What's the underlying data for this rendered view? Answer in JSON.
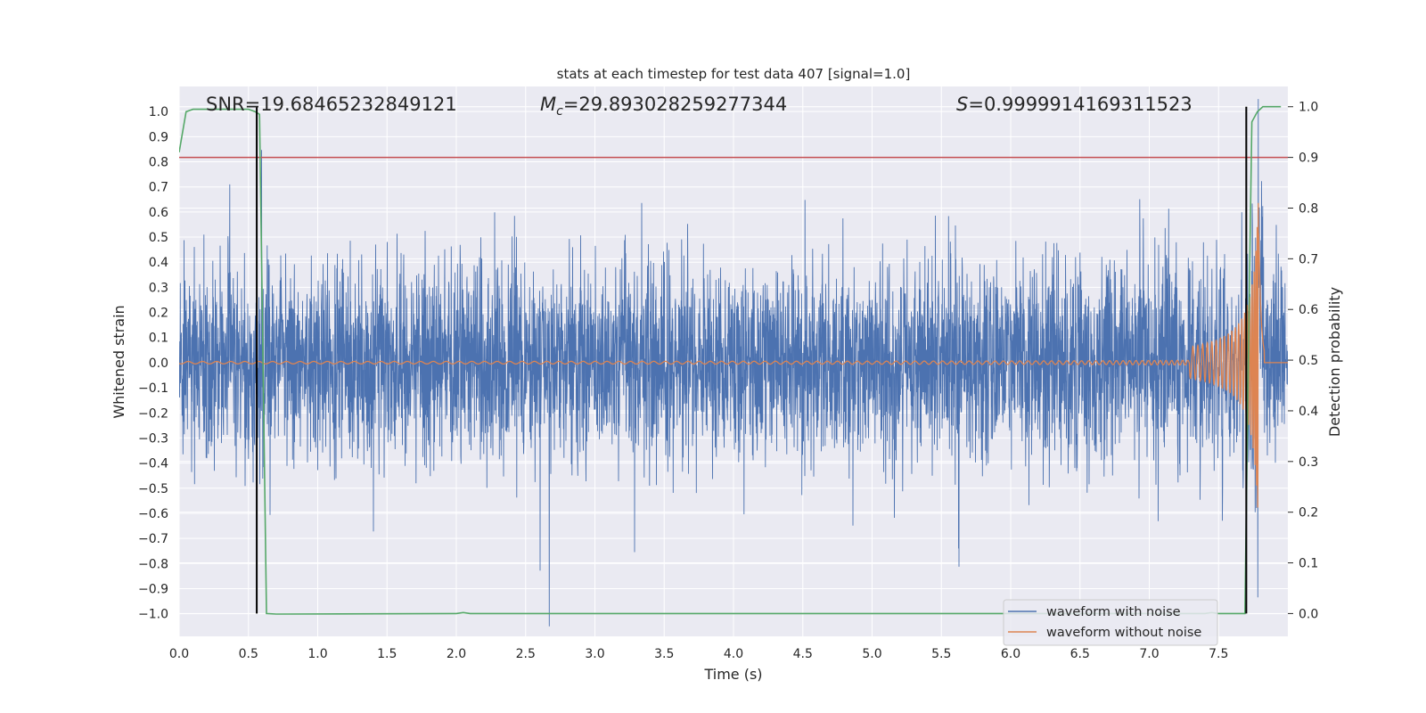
{
  "chart_data": {
    "type": "line",
    "title": "stats at each timestep for test data 407 [signal=1.0]",
    "xlabel": "Time (s)",
    "ylabel": "Whitened strain",
    "ylabel_right": "Detection probability",
    "xlim": [
      0.0,
      8.0
    ],
    "ylim": [
      -1.09,
      1.1
    ],
    "ylim_right": [
      -0.045,
      1.04
    ],
    "x_ticks": [
      "0.0",
      "0.5",
      "1.0",
      "1.5",
      "2.0",
      "2.5",
      "3.0",
      "3.5",
      "4.0",
      "4.5",
      "5.0",
      "5.5",
      "6.0",
      "6.5",
      "7.0",
      "7.5"
    ],
    "y_ticks": [
      "1.0",
      "0.9",
      "0.8",
      "0.7",
      "0.6",
      "0.5",
      "0.4",
      "0.3",
      "0.2",
      "0.1",
      "0.0",
      "−0.1",
      "−0.2",
      "−0.3",
      "−0.4",
      "−0.5",
      "−0.6",
      "−0.7",
      "−0.8",
      "−0.9",
      "−1.0"
    ],
    "y_tick_values": [
      1.0,
      0.9,
      0.8,
      0.7,
      0.6,
      0.5,
      0.4,
      0.3,
      0.2,
      0.1,
      0.0,
      -0.1,
      -0.2,
      -0.3,
      -0.4,
      -0.5,
      -0.6,
      -0.7,
      -0.8,
      -0.9,
      -1.0
    ],
    "y_right_ticks": [
      "1.0",
      "0.9",
      "0.8",
      "0.7",
      "0.6",
      "0.5",
      "0.4",
      "0.3",
      "0.2",
      "0.1",
      "0.0"
    ],
    "y_right_tick_values": [
      1.0,
      0.9,
      0.8,
      0.7,
      0.6,
      0.5,
      0.4,
      0.3,
      0.2,
      0.1,
      0.0
    ],
    "annotations": {
      "snr": "SNR=19.68465232849121",
      "mc_symbol": "M",
      "mc_sub": "c",
      "mc_value": "=29.893028259277344",
      "s_symbol": "S",
      "s_value": "=0.9999914169311523"
    },
    "threshold": {
      "value": 0.9,
      "axis": "right",
      "color": "#c44e52"
    },
    "vlines": [
      0.56,
      7.7
    ],
    "series": [
      {
        "name": "waveform with noise",
        "color": "#4c72b0",
        "noise_std": 0.19
      },
      {
        "name": "waveform without noise",
        "color": "#dd8452"
      },
      {
        "name": "Detection probability",
        "color": "#55a868",
        "axis": "right",
        "points": [
          [
            0.0,
            0.91
          ],
          [
            0.05,
            0.99
          ],
          [
            0.1,
            0.995
          ],
          [
            0.5,
            0.995
          ],
          [
            0.55,
            0.99
          ],
          [
            0.58,
            0.985
          ],
          [
            0.6,
            0.6
          ],
          [
            0.63,
            0.0
          ],
          [
            0.7,
            -0.001
          ],
          [
            2.0,
            0.0
          ],
          [
            2.05,
            0.002
          ],
          [
            2.1,
            0.0
          ],
          [
            7.4,
            0.0
          ],
          [
            7.45,
            0.002
          ],
          [
            7.5,
            0.0
          ],
          [
            7.69,
            0.0
          ],
          [
            7.72,
            0.6
          ],
          [
            7.74,
            0.97
          ],
          [
            7.78,
            0.99
          ],
          [
            7.82,
            1.0
          ],
          [
            7.95,
            1.0
          ]
        ]
      }
    ],
    "legend": {
      "location": "lower-right",
      "entries": [
        "waveform with noise",
        "waveform without noise"
      ]
    }
  }
}
